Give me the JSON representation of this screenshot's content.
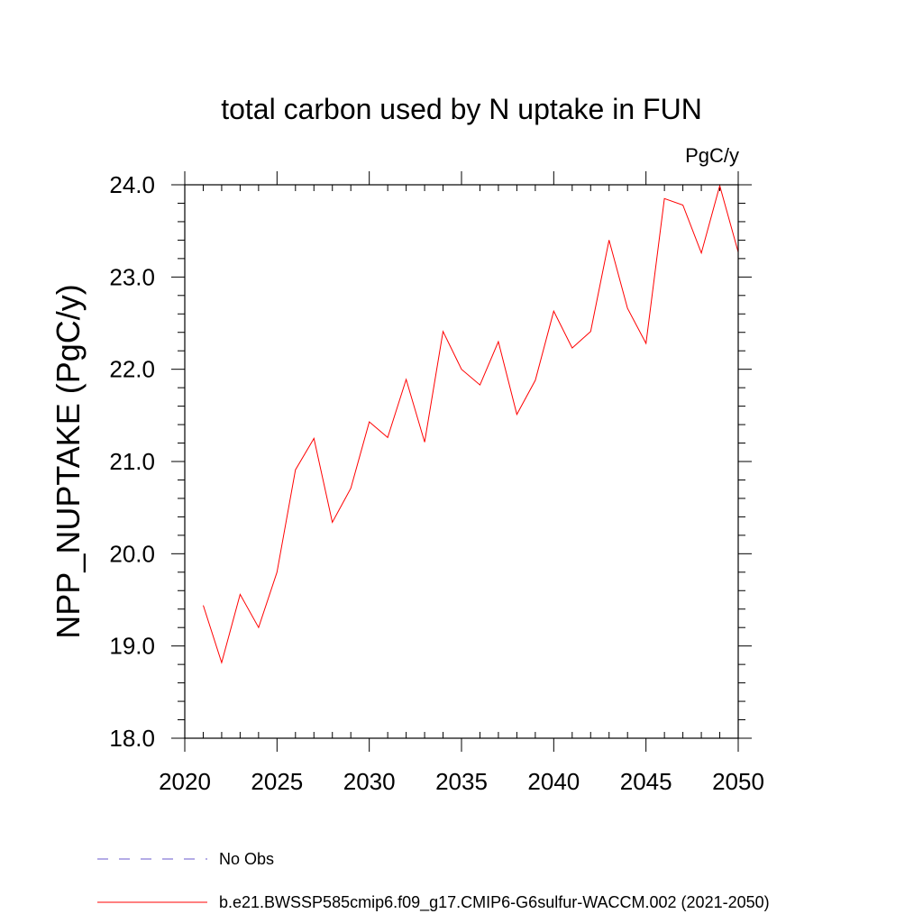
{
  "chart_data": {
    "type": "line",
    "title": "total carbon used by N uptake in FUN",
    "units": "PgC/y",
    "ylabel": "NPP_NUPTAKE  (PgC/y)",
    "xlabel": "",
    "xlim": [
      2020,
      2050
    ],
    "ylim": [
      18.0,
      24.0
    ],
    "x_ticks": [
      2020,
      2025,
      2030,
      2035,
      2040,
      2045,
      2050
    ],
    "x_tick_labels": [
      "2020",
      "2025",
      "2030",
      "2035",
      "2040",
      "2045",
      "2050"
    ],
    "y_ticks": [
      18.0,
      19.0,
      20.0,
      21.0,
      22.0,
      23.0,
      24.0
    ],
    "y_tick_labels": [
      "18.0",
      "19.0",
      "20.0",
      "21.0",
      "22.0",
      "23.0",
      "24.0"
    ],
    "grid": false,
    "legend_position": "bottom-left",
    "series": [
      {
        "name": "b.e21.BWSSP585cmip6.f09_g17.CMIP6-G6sulfur-WACCM.002 (2021-2050)",
        "color": "#ff0000",
        "style": "solid",
        "x": [
          2021,
          2022,
          2023,
          2024,
          2025,
          2026,
          2027,
          2028,
          2029,
          2030,
          2031,
          2032,
          2033,
          2034,
          2035,
          2036,
          2037,
          2038,
          2039,
          2040,
          2041,
          2042,
          2043,
          2044,
          2045,
          2046,
          2047,
          2048,
          2049,
          2050
        ],
        "values": [
          19.44,
          18.82,
          19.56,
          19.2,
          19.8,
          20.91,
          21.25,
          20.34,
          20.71,
          21.43,
          21.26,
          21.89,
          21.21,
          22.41,
          22.0,
          21.83,
          22.3,
          21.51,
          21.88,
          22.63,
          22.23,
          22.41,
          23.4,
          22.66,
          22.28,
          23.85,
          23.78,
          23.26,
          23.99,
          23.27
        ]
      }
    ],
    "legend": [
      {
        "label": "No Obs",
        "color": "#6a5acd",
        "style": "dashed"
      },
      {
        "label": "b.e21.BWSSP585cmip6.f09_g17.CMIP6-G6sulfur-WACCM.002 (2021-2050)",
        "color": "#ff0000",
        "style": "solid"
      }
    ]
  }
}
